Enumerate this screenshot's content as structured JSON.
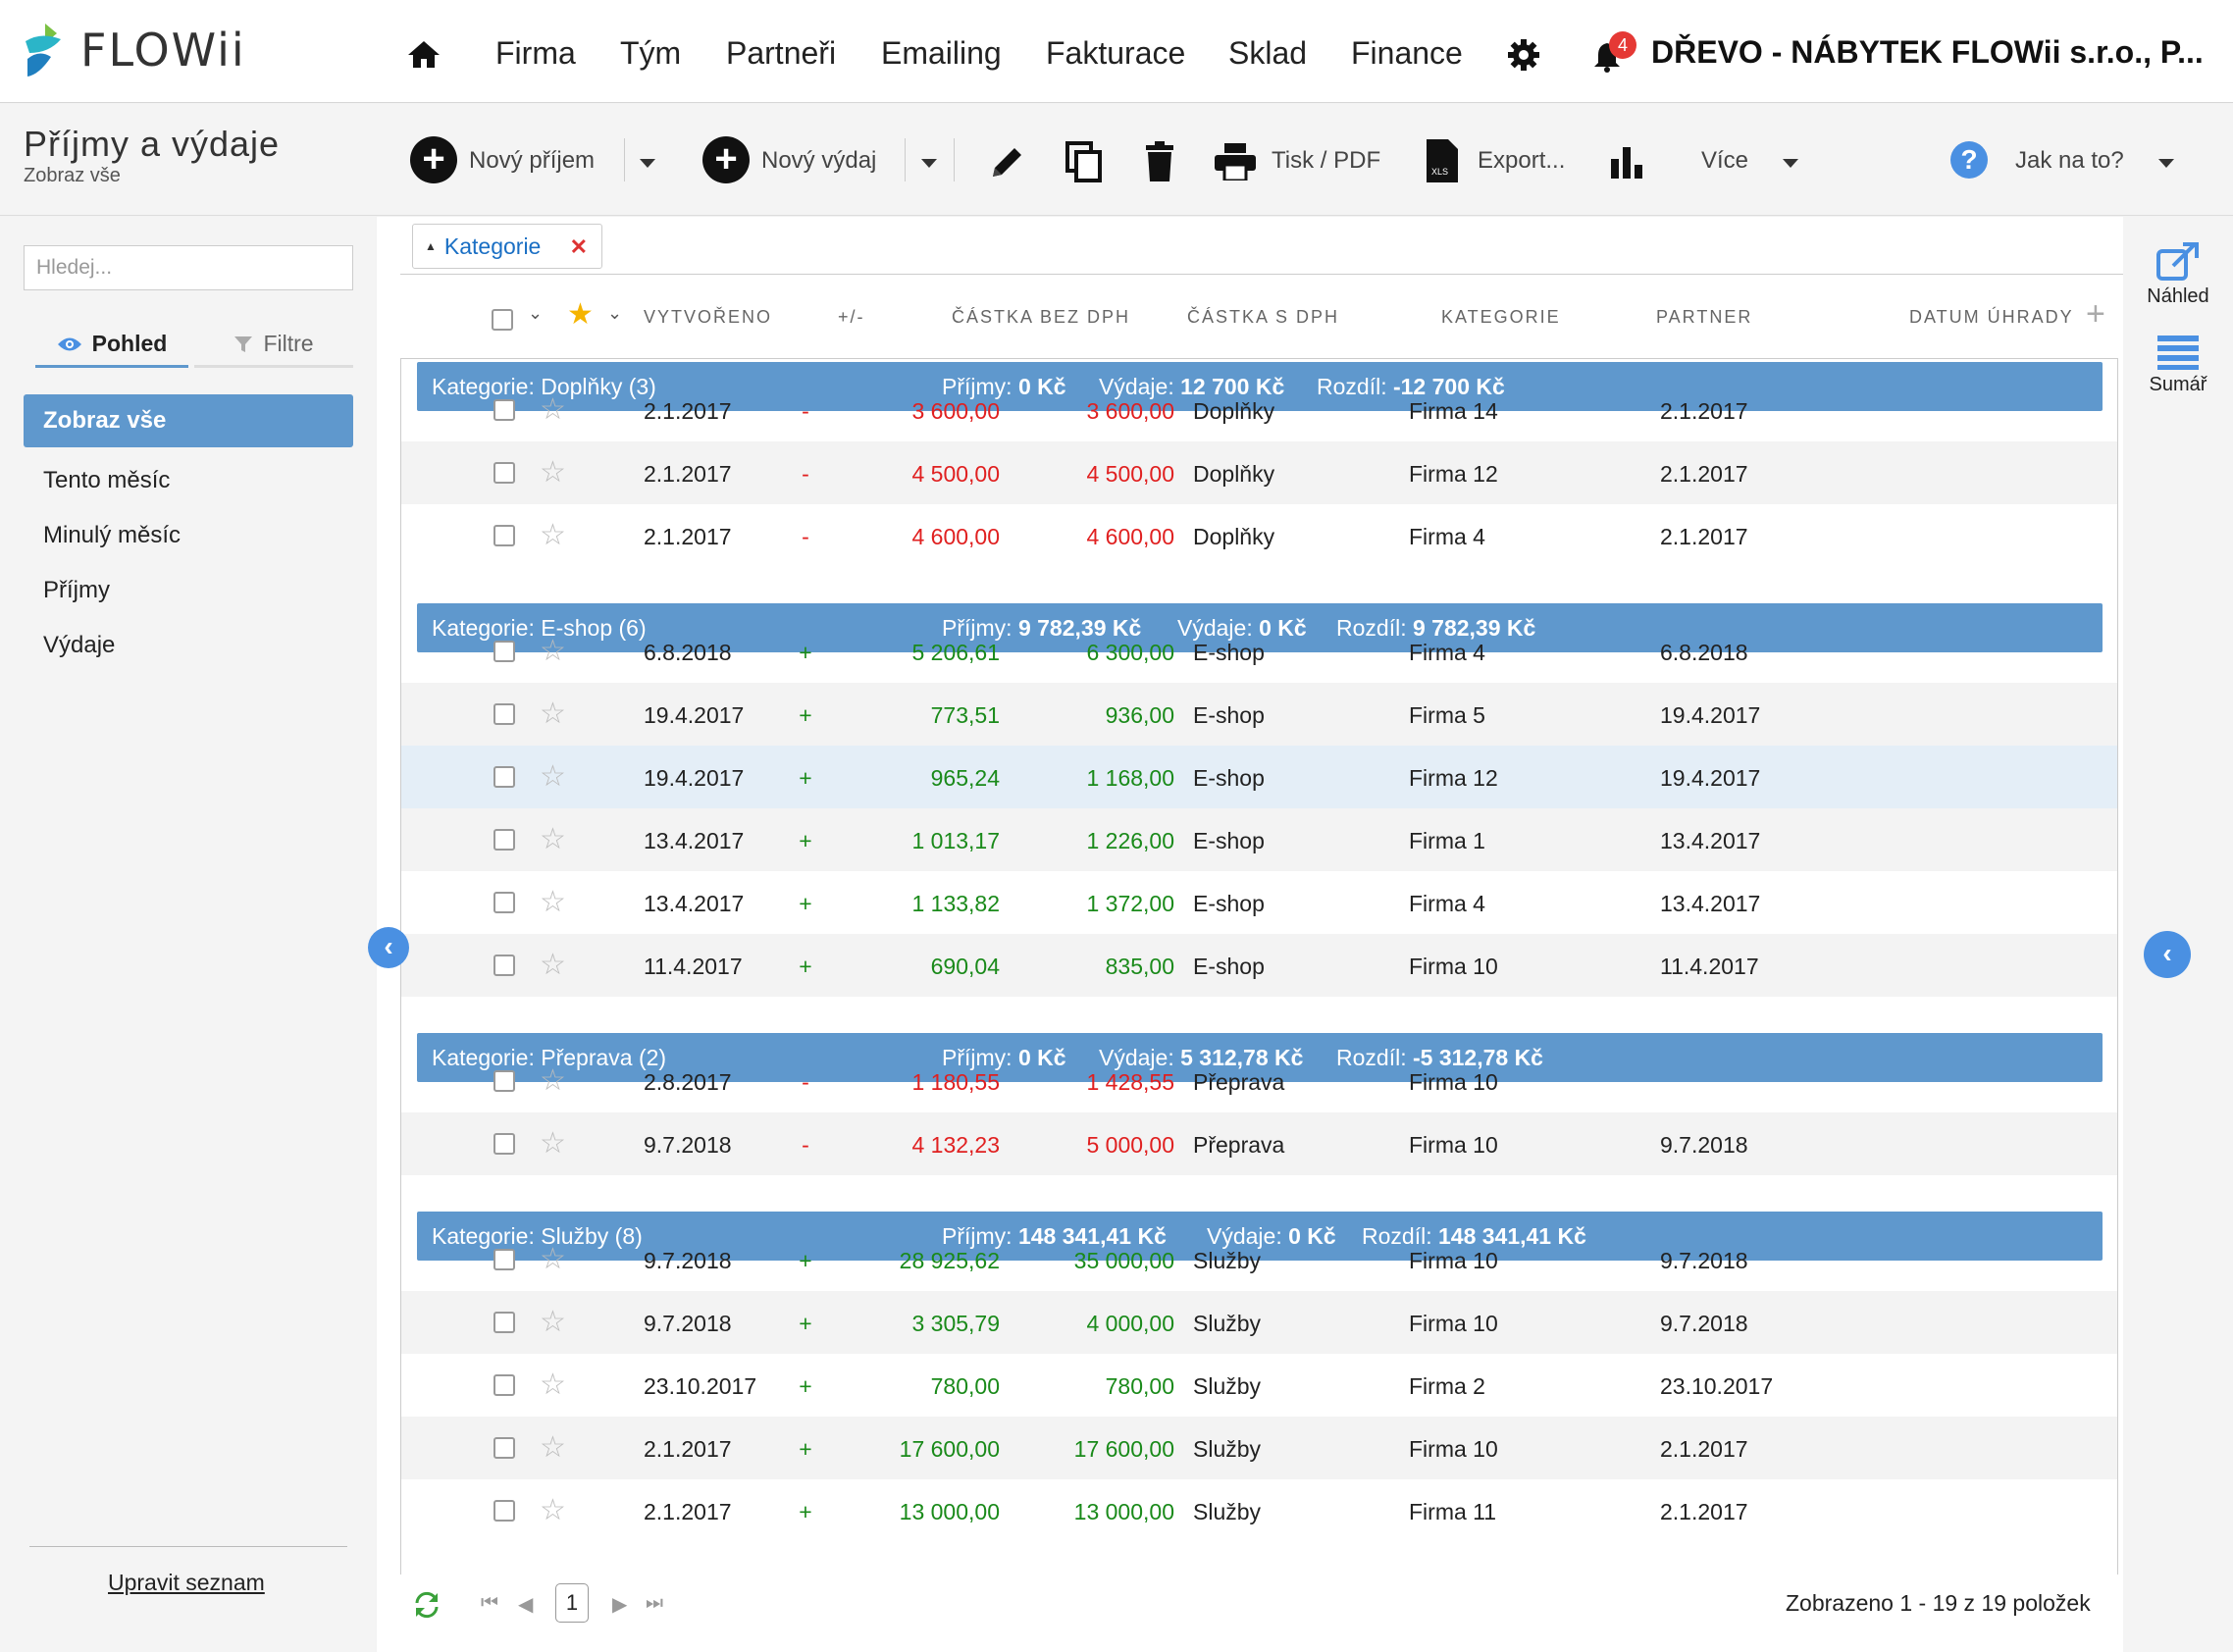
{
  "nav": {
    "brand": "FLOWii",
    "items": [
      "Firma",
      "Tým",
      "Partneři",
      "Emailing",
      "Fakturace",
      "Sklad",
      "Finance"
    ],
    "notification_count": "4",
    "company": "DŘEVO - NÁBYTEK FLOWii s.r.o., P..."
  },
  "toolbar": {
    "title": "Příjmy a výdaje",
    "subtitle": "Zobraz vše",
    "new_income": "Nový příjem",
    "new_expense": "Nový výdaj",
    "print": "Tisk / PDF",
    "export": "Export...",
    "more": "Více",
    "help": "Jak na to?"
  },
  "sidebar": {
    "search_placeholder": "Hledej...",
    "tab_view": "Pohled",
    "tab_filter": "Filtre",
    "items": [
      "Zobraz vše",
      "Tento měsíc",
      "Minulý měsíc",
      "Příjmy",
      "Výdaje"
    ],
    "edit_list": "Upravit seznam"
  },
  "filter_chip": "Kategorie",
  "columns": {
    "created": "VYTVOŘENO",
    "sign": "+/-",
    "net": "ČÁSTKA BEZ DPH",
    "gross": "ČÁSTKA S DPH",
    "category": "KATEGORIE",
    "partner": "PARTNER",
    "paid": "DATUM ÚHRADY"
  },
  "groups": [
    {
      "label": "Kategorie: Doplňky (3)",
      "income_label": "Příjmy:",
      "income": "0 Kč",
      "expense_label": "Výdaje:",
      "expense": "12 700 Kč",
      "diff_label": "Rozdíl:",
      "diff": "-12 700 Kč"
    },
    {
      "label": "Kategorie: E-shop (6)",
      "income_label": "Příjmy:",
      "income": "9 782,39 Kč",
      "expense_label": "Výdaje:",
      "expense": "0 Kč",
      "diff_label": "Rozdíl:",
      "diff": "9 782,39 Kč"
    },
    {
      "label": "Kategorie: Přeprava (2)",
      "income_label": "Příjmy:",
      "income": "0 Kč",
      "expense_label": "Výdaje:",
      "expense": "5 312,78 Kč",
      "diff_label": "Rozdíl:",
      "diff": "-5 312,78 Kč"
    },
    {
      "label": "Kategorie: Služby (8)",
      "income_label": "Příjmy:",
      "income": "148 341,41 Kč",
      "expense_label": "Výdaje:",
      "expense": "0 Kč",
      "diff_label": "Rozdíl:",
      "diff": "148 341,41 Kč"
    }
  ],
  "rows": [
    {
      "created": "2.1.2017",
      "sign": "-",
      "net": "3 600,00",
      "gross": "3 600,00",
      "category": "Doplňky",
      "partner": "Firma 14",
      "paid": "2.1.2017"
    },
    {
      "created": "2.1.2017",
      "sign": "-",
      "net": "4 500,00",
      "gross": "4 500,00",
      "category": "Doplňky",
      "partner": "Firma 12",
      "paid": "2.1.2017"
    },
    {
      "created": "2.1.2017",
      "sign": "-",
      "net": "4 600,00",
      "gross": "4 600,00",
      "category": "Doplňky",
      "partner": "Firma 4",
      "paid": "2.1.2017"
    },
    {
      "created": "6.8.2018",
      "sign": "+",
      "net": "5 206,61",
      "gross": "6 300,00",
      "category": "E-shop",
      "partner": "Firma 4",
      "paid": "6.8.2018"
    },
    {
      "created": "19.4.2017",
      "sign": "+",
      "net": "773,51",
      "gross": "936,00",
      "category": "E-shop",
      "partner": "Firma 5",
      "paid": "19.4.2017"
    },
    {
      "created": "19.4.2017",
      "sign": "+",
      "net": "965,24",
      "gross": "1 168,00",
      "category": "E-shop",
      "partner": "Firma 12",
      "paid": "19.4.2017"
    },
    {
      "created": "13.4.2017",
      "sign": "+",
      "net": "1 013,17",
      "gross": "1 226,00",
      "category": "E-shop",
      "partner": "Firma 1",
      "paid": "13.4.2017"
    },
    {
      "created": "13.4.2017",
      "sign": "+",
      "net": "1 133,82",
      "gross": "1 372,00",
      "category": "E-shop",
      "partner": "Firma 4",
      "paid": "13.4.2017"
    },
    {
      "created": "11.4.2017",
      "sign": "+",
      "net": "690,04",
      "gross": "835,00",
      "category": "E-shop",
      "partner": "Firma 10",
      "paid": "11.4.2017"
    },
    {
      "created": "2.8.2017",
      "sign": "-",
      "net": "1 180,55",
      "gross": "1 428,55",
      "category": "Přeprava",
      "partner": "Firma 10",
      "paid": ""
    },
    {
      "created": "9.7.2018",
      "sign": "-",
      "net": "4 132,23",
      "gross": "5 000,00",
      "category": "Přeprava",
      "partner": "Firma 10",
      "paid": "9.7.2018"
    },
    {
      "created": "9.7.2018",
      "sign": "+",
      "net": "28 925,62",
      "gross": "35 000,00",
      "category": "Služby",
      "partner": "Firma 10",
      "paid": "9.7.2018"
    },
    {
      "created": "9.7.2018",
      "sign": "+",
      "net": "3 305,79",
      "gross": "4 000,00",
      "category": "Služby",
      "partner": "Firma 10",
      "paid": "9.7.2018"
    },
    {
      "created": "23.10.2017",
      "sign": "+",
      "net": "780,00",
      "gross": "780,00",
      "category": "Služby",
      "partner": "Firma 2",
      "paid": "23.10.2017"
    },
    {
      "created": "2.1.2017",
      "sign": "+",
      "net": "17 600,00",
      "gross": "17 600,00",
      "category": "Služby",
      "partner": "Firma 10",
      "paid": "2.1.2017"
    },
    {
      "created": "2.1.2017",
      "sign": "+",
      "net": "13 000,00",
      "gross": "13 000,00",
      "category": "Služby",
      "partner": "Firma 11",
      "paid": "2.1.2017"
    }
  ],
  "pager": {
    "page": "1",
    "info": "Zobrazeno 1 - 19 z 19 položek"
  },
  "rail": {
    "preview": "Náhled",
    "summary": "Sumář"
  },
  "colors": {
    "accent": "#5f98cd",
    "negative": "#e02020",
    "positive": "#1a8a1a",
    "link": "#1a6fc4"
  }
}
